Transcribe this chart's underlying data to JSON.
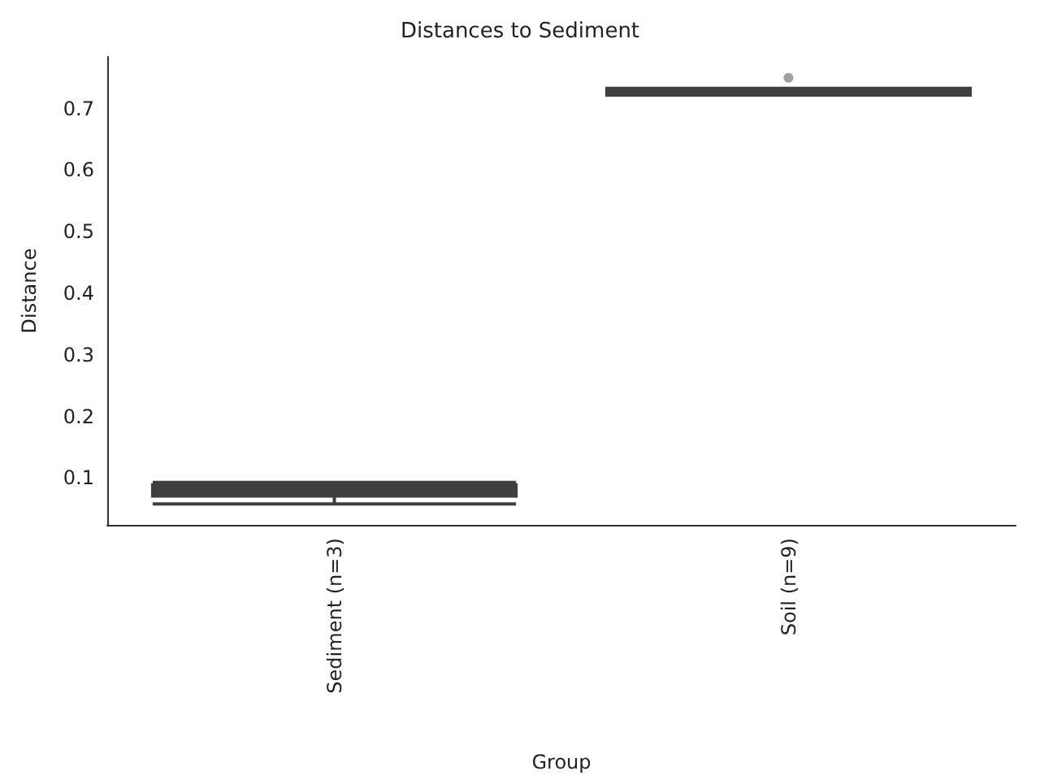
{
  "chart_data": {
    "type": "box",
    "title": "Distances to Sediment",
    "xlabel": "Group",
    "ylabel": "Distance",
    "categories": [
      "Sediment (n=3)",
      "Soil (n=9)"
    ],
    "boxes": [
      {
        "low": 0.058,
        "q1": 0.071,
        "median": 0.076,
        "q3": 0.089,
        "high": 0.093
      },
      {
        "low": 0.724,
        "q1": 0.722,
        "median": 0.727,
        "q3": 0.733,
        "high": 0.73,
        "outliers": [
          0.75
        ]
      }
    ],
    "color": "#3f3f3f",
    "ylim": [
      0.024,
      0.784
    ],
    "yticks": [
      0.1,
      0.2,
      0.3,
      0.4,
      0.5,
      0.6,
      0.7
    ],
    "grid": false
  }
}
